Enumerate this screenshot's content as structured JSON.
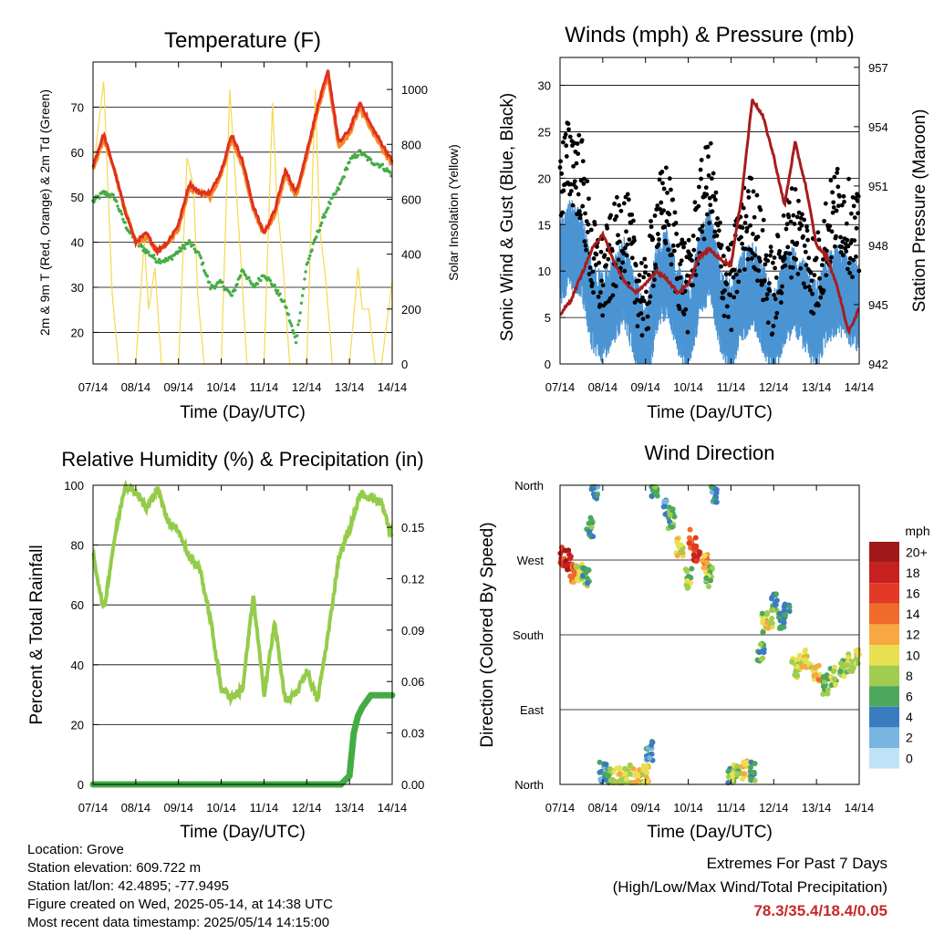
{
  "x_tick_labels": [
    "07/14",
    "08/14",
    "09/14",
    "10/14",
    "11/14",
    "12/14",
    "13/14",
    "14/14"
  ],
  "colors": {
    "temp2m": "#e0301e",
    "temp9m": "#f28a2a",
    "dewpoint": "#45ac45",
    "solar": "#f5d94e",
    "wind": "#4a94d4",
    "gust": "#000000",
    "pressure": "#a81c1c",
    "rh": "#94cc4a",
    "precip": "#45ac45"
  },
  "panels": {
    "temperature": {
      "title": "Temperature (F)",
      "xlabel": "Time (Day/UTC)",
      "ylabel_left": "2m & 9m T (Red, Orange) & 2m Td (Green)",
      "ylabel_right": "Solar Insolation (Yellow)",
      "left_ticks": [
        "20",
        "30",
        "40",
        "50",
        "60",
        "70"
      ],
      "right_ticks": [
        "0",
        "200",
        "400",
        "600",
        "800",
        "1000"
      ]
    },
    "winds": {
      "title": "Winds (mph) & Pressure (mb)",
      "xlabel": "Time (Day/UTC)",
      "ylabel_left": "Sonic Wind & Gust (Blue, Black)",
      "ylabel_right": "Station Pressure (Maroon)",
      "left_ticks": [
        "0",
        "5",
        "10",
        "15",
        "20",
        "25",
        "30"
      ],
      "right_ticks": [
        "942",
        "945",
        "948",
        "951",
        "954",
        "957"
      ]
    },
    "humidity": {
      "title": "Relative Humidity (%) & Precipitation (in)",
      "xlabel": "Time (Day/UTC)",
      "ylabel_left": "Percent & Total Rainfall",
      "left_ticks": [
        "0",
        "20",
        "40",
        "60",
        "80",
        "100"
      ],
      "right_ticks": [
        "0.00",
        "0.03",
        "0.06",
        "0.09",
        "0.12",
        "0.15"
      ]
    },
    "direction": {
      "title": "Wind Direction",
      "xlabel": "Time (Day/UTC)",
      "ylabel_left": "Direction (Colored By Speed)",
      "dir_labels": [
        "North",
        "East",
        "South",
        "West",
        "North"
      ],
      "legend_title": "mph",
      "legend_labels": [
        "20+",
        "18",
        "16",
        "14",
        "12",
        "10",
        "8",
        "6",
        "4",
        "2",
        "0"
      ],
      "legend_colors": [
        "#a01818",
        "#c82020",
        "#e23a26",
        "#f06a2a",
        "#f8a840",
        "#e8e050",
        "#a0cc50",
        "#4ca85c",
        "#3a7cc0",
        "#7ab4e2",
        "#c0e2f6"
      ]
    }
  },
  "chart_data": [
    {
      "type": "line",
      "title": "Temperature (F)",
      "xlabel": "Time (Day/UTC)",
      "ylabel": "2m & 9m T (Red, Orange) & 2m Td (Green)",
      "y2label": "Solar Insolation (Yellow)",
      "x_unit": "days since 07/14 00 UTC",
      "xlim": [
        0,
        7
      ],
      "ylim": [
        13,
        80
      ],
      "y2lim": [
        0,
        1100
      ],
      "grid": true,
      "series": [
        {
          "name": "2m T",
          "axis": "left",
          "x": [
            0,
            0.25,
            0.5,
            0.75,
            1,
            1.25,
            1.5,
            1.75,
            2,
            2.25,
            2.5,
            2.75,
            3,
            3.25,
            3.5,
            3.75,
            4,
            4.25,
            4.5,
            4.75,
            5,
            5.25,
            5.5,
            5.75,
            6,
            6.25,
            6.5,
            6.75,
            7
          ],
          "values": [
            57,
            64,
            56,
            47,
            40,
            42,
            38,
            40,
            44,
            53,
            51,
            51,
            56,
            64,
            58,
            48,
            42,
            47,
            56,
            51,
            60,
            70,
            78,
            62,
            65,
            71,
            66,
            62,
            58
          ]
        },
        {
          "name": "9m T",
          "axis": "left",
          "x": [
            0,
            0.25,
            0.5,
            0.75,
            1,
            1.25,
            1.5,
            1.75,
            2,
            2.25,
            2.5,
            2.75,
            3,
            3.25,
            3.5,
            3.75,
            4,
            4.25,
            4.5,
            4.75,
            5,
            5.25,
            5.5,
            5.75,
            6,
            6.25,
            6.5,
            6.75,
            7
          ],
          "values": [
            56,
            63,
            56,
            47,
            40,
            41,
            38,
            40,
            43,
            52,
            51,
            50,
            55,
            63,
            57,
            47,
            42,
            46,
            55,
            50,
            59,
            69,
            77,
            61,
            64,
            70,
            65,
            61,
            57
          ]
        },
        {
          "name": "2m Td",
          "axis": "left",
          "x": [
            0,
            0.25,
            0.5,
            0.75,
            1,
            1.25,
            1.5,
            1.75,
            2,
            2.25,
            2.5,
            2.75,
            3,
            3.25,
            3.5,
            3.75,
            4,
            4.25,
            4.5,
            4.75,
            5,
            5.25,
            5.5,
            5.75,
            6,
            6.25,
            6.5,
            6.75,
            7
          ],
          "values": [
            49,
            51,
            50,
            44,
            40,
            38,
            36,
            36,
            38,
            40,
            37,
            30,
            31,
            28,
            34,
            30,
            33,
            30,
            26,
            18,
            35,
            42,
            48,
            52,
            58,
            60,
            58,
            57,
            55
          ]
        },
        {
          "name": "Solar Insolation",
          "axis": "right",
          "x": [
            0,
            0.25,
            0.45,
            0.6,
            0.75,
            1,
            1.2,
            1.3,
            1.45,
            1.6,
            1.75,
            2,
            2.2,
            2.35,
            2.45,
            2.6,
            2.75,
            3,
            3.2,
            3.3,
            3.45,
            3.6,
            3.75,
            4,
            4.2,
            4.3,
            4.45,
            4.6,
            4.75,
            5,
            5.2,
            5.3,
            5.45,
            5.6,
            5.75,
            6,
            6.2,
            6.3,
            6.45,
            6.6,
            6.75,
            7
          ],
          "values": [
            700,
            1030,
            250,
            0,
            0,
            0,
            450,
            200,
            350,
            0,
            0,
            0,
            750,
            650,
            250,
            0,
            0,
            0,
            1000,
            750,
            400,
            0,
            0,
            0,
            950,
            600,
            350,
            0,
            0,
            0,
            1000,
            500,
            300,
            0,
            0,
            0,
            350,
            200,
            200,
            0,
            0,
            300
          ]
        }
      ]
    },
    {
      "type": "line",
      "title": "Winds (mph) & Pressure (mb)",
      "xlabel": "Time (Day/UTC)",
      "ylabel": "Sonic Wind & Gust (Blue, Black)",
      "y2label": "Station Pressure (Maroon)",
      "x_unit": "days since 07/14 00 UTC",
      "xlim": [
        0,
        7
      ],
      "ylim": [
        0,
        33
      ],
      "y2lim": [
        942,
        957.5
      ],
      "grid": true,
      "series": [
        {
          "name": "Sonic Wind",
          "axis": "left",
          "x": [
            0,
            0.25,
            0.5,
            0.75,
            1,
            1.25,
            1.5,
            1.75,
            2,
            2.25,
            2.5,
            2.75,
            3,
            3.25,
            3.5,
            3.75,
            4,
            4.25,
            4.5,
            4.75,
            5,
            5.25,
            5.5,
            5.75,
            6,
            6.25,
            6.5,
            6.75,
            7
          ],
          "values": [
            12,
            14,
            13,
            7,
            6,
            8,
            10,
            6,
            2,
            9,
            11,
            7,
            5,
            10,
            13,
            7,
            5,
            8,
            10,
            7,
            4,
            8,
            9,
            7,
            5,
            8,
            9,
            8,
            7
          ]
        },
        {
          "name": "Gust",
          "axis": "left",
          "x": [
            0,
            0.25,
            0.5,
            0.75,
            1,
            1.25,
            1.5,
            1.75,
            2,
            2.25,
            2.5,
            2.75,
            3,
            3.25,
            3.5,
            3.75,
            4,
            4.25,
            4.5,
            4.75,
            5,
            5.25,
            5.5,
            5.75,
            6,
            6.25,
            6.5,
            6.75,
            7
          ],
          "values": [
            20,
            22,
            20,
            11,
            9,
            12,
            15,
            10,
            6,
            15,
            17,
            11,
            8,
            16,
            20,
            11,
            8,
            14,
            16,
            11,
            7,
            13,
            15,
            12,
            9,
            14,
            17,
            15,
            13
          ]
        },
        {
          "name": "Station Pressure",
          "axis": "right",
          "x": [
            0,
            0.25,
            0.5,
            0.75,
            1,
            1.25,
            1.5,
            1.75,
            2,
            2.25,
            2.5,
            2.75,
            3,
            3.25,
            3.5,
            3.75,
            4,
            4.25,
            4.5,
            4.75,
            5,
            5.25,
            5.5,
            5.75,
            6,
            6.25,
            6.5,
            6.75,
            7
          ],
          "values": [
            944.5,
            945.2,
            946.5,
            947.8,
            948.6,
            947.2,
            946.2,
            945.6,
            946.0,
            946.7,
            946.3,
            945.6,
            946.0,
            947.4,
            947.8,
            947.3,
            947.0,
            950.5,
            955.4,
            954.5,
            952.5,
            950.0,
            953.2,
            951.0,
            948.0,
            947.4,
            945.8,
            943.6,
            944.8
          ]
        }
      ]
    },
    {
      "type": "line",
      "title": "Relative Humidity (%) & Precipitation (in)",
      "xlabel": "Time (Day/UTC)",
      "ylabel": "Percent & Total Rainfall",
      "x_unit": "days since 07/14 00 UTC",
      "xlim": [
        0,
        7
      ],
      "ylim": [
        0,
        100
      ],
      "y2lim": [
        0,
        0.1745
      ],
      "grid": true,
      "series": [
        {
          "name": "Relative Humidity",
          "axis": "left",
          "x": [
            0,
            0.25,
            0.5,
            0.75,
            1,
            1.25,
            1.5,
            1.75,
            2,
            2.25,
            2.5,
            2.75,
            3,
            3.25,
            3.5,
            3.75,
            4,
            4.25,
            4.5,
            4.75,
            5,
            5.25,
            5.5,
            5.75,
            6,
            6.25,
            6.5,
            6.75,
            7
          ],
          "values": [
            77,
            58,
            82,
            100,
            98,
            92,
            99,
            88,
            85,
            76,
            72,
            55,
            32,
            29,
            32,
            63,
            30,
            54,
            28,
            30,
            38,
            28,
            50,
            76,
            85,
            97,
            96,
            94,
            82
          ]
        },
        {
          "name": "Total Rainfall",
          "axis": "right",
          "x": [
            0,
            5.8,
            6.0,
            6.1,
            6.2,
            6.3,
            6.5,
            6.75,
            7
          ],
          "values": [
            0,
            0,
            0.005,
            0.03,
            0.04,
            0.045,
            0.052,
            0.052,
            0.052
          ]
        }
      ]
    },
    {
      "type": "scatter",
      "title": "Wind Direction",
      "xlabel": "Time (Day/UTC)",
      "ylabel": "Direction (Colored By Speed)",
      "x_unit": "days since 07/14 00 UTC",
      "xlim": [
        0,
        7
      ],
      "ylim": [
        0,
        360
      ],
      "y_ticks": [
        "North",
        "East",
        "South",
        "West",
        "North"
      ],
      "legend": "right",
      "colorbar_title": "mph",
      "colorbar_labels": [
        "20+",
        "18",
        "16",
        "14",
        "12",
        "10",
        "8",
        "6",
        "4",
        "2",
        "0"
      ],
      "series": [
        {
          "name": "Wind Direction",
          "x": [
            0.05,
            0.2,
            0.3,
            0.45,
            0.6,
            0.7,
            0.8,
            1.0,
            1.2,
            1.4,
            1.6,
            1.8,
            2.0,
            2.1,
            2.2,
            2.5,
            2.6,
            2.8,
            3.0,
            3.1,
            3.2,
            3.4,
            3.5,
            3.6,
            4.0,
            4.1,
            4.3,
            4.5,
            4.7,
            4.8,
            4.9,
            5.0,
            5.2,
            5.3,
            5.5,
            5.6,
            5.8,
            6.0,
            6.2,
            6.4,
            6.6,
            6.8,
            7.0
          ],
          "values": [
            275,
            270,
            255,
            255,
            250,
            310,
            355,
            15,
            10,
            8,
            12,
            8,
            12,
            40,
            358,
            330,
            320,
            285,
            248,
            295,
            280,
            265,
            250,
            350,
            8,
            12,
            18,
            15,
            160,
            195,
            200,
            218,
            195,
            205,
            140,
            145,
            150,
            135,
            120,
            130,
            140,
            145,
            150
          ],
          "speed_mph": [
            16,
            18,
            14,
            8,
            6,
            6,
            4,
            4,
            8,
            10,
            8,
            12,
            10,
            4,
            6,
            4,
            6,
            10,
            8,
            14,
            16,
            12,
            8,
            4,
            6,
            8,
            10,
            6,
            6,
            8,
            10,
            6,
            6,
            4,
            8,
            10,
            10,
            12,
            6,
            8,
            8,
            8,
            10
          ]
        }
      ]
    }
  ],
  "info": {
    "location": "Location: Grove",
    "elevation": "Station elevation: 609.722 m",
    "latlon": "Station lat/lon: 42.4895; -77.9495",
    "created": "Figure created on Wed, 2025-05-14, at 14:38 UTC",
    "recent": "Most recent data timestamp: 2025/05/14 14:15:00"
  },
  "extremes": {
    "heading": "Extremes For Past 7 Days",
    "subheading": "(High/Low/Max Wind/Total Precipitation)",
    "values": "78.3/35.4/18.4/0.05"
  }
}
